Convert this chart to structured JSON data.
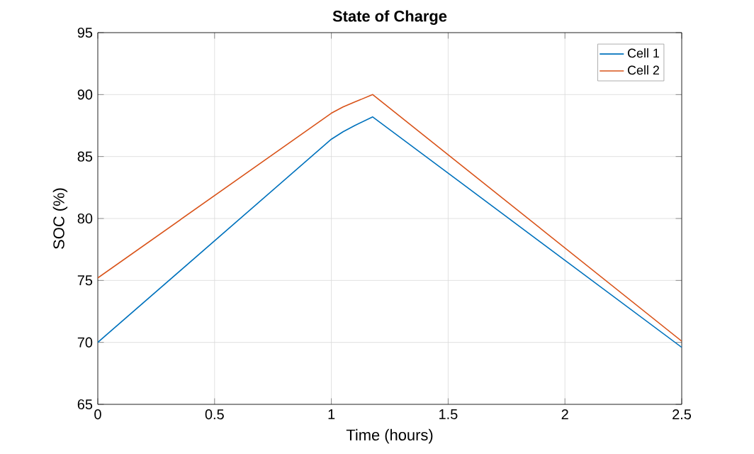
{
  "chart_data": {
    "type": "line",
    "title": "State of Charge",
    "xlabel": "Time (hours)",
    "ylabel": "SOC (%)",
    "xlim": [
      0,
      2.5
    ],
    "ylim": [
      65,
      95
    ],
    "xticks": [
      0,
      0.5,
      1,
      1.5,
      2,
      2.5
    ],
    "yticks": [
      65,
      70,
      75,
      80,
      85,
      90,
      95
    ],
    "grid": true,
    "legend": "top right",
    "line_style": "solid",
    "series": [
      {
        "name": "Cell 1",
        "color": "#0072bd",
        "x": [
          0,
          1.0,
          1.05,
          1.1,
          1.177,
          2.5
        ],
        "values": [
          70,
          86.4,
          87.0,
          87.5,
          88.2,
          69.6
        ]
      },
      {
        "name": "Cell 2",
        "color": "#d95319",
        "x": [
          0,
          1.0,
          1.05,
          1.1,
          1.177,
          2.5
        ],
        "values": [
          75.2,
          88.5,
          89.0,
          89.4,
          90.0,
          70.1
        ]
      }
    ]
  }
}
